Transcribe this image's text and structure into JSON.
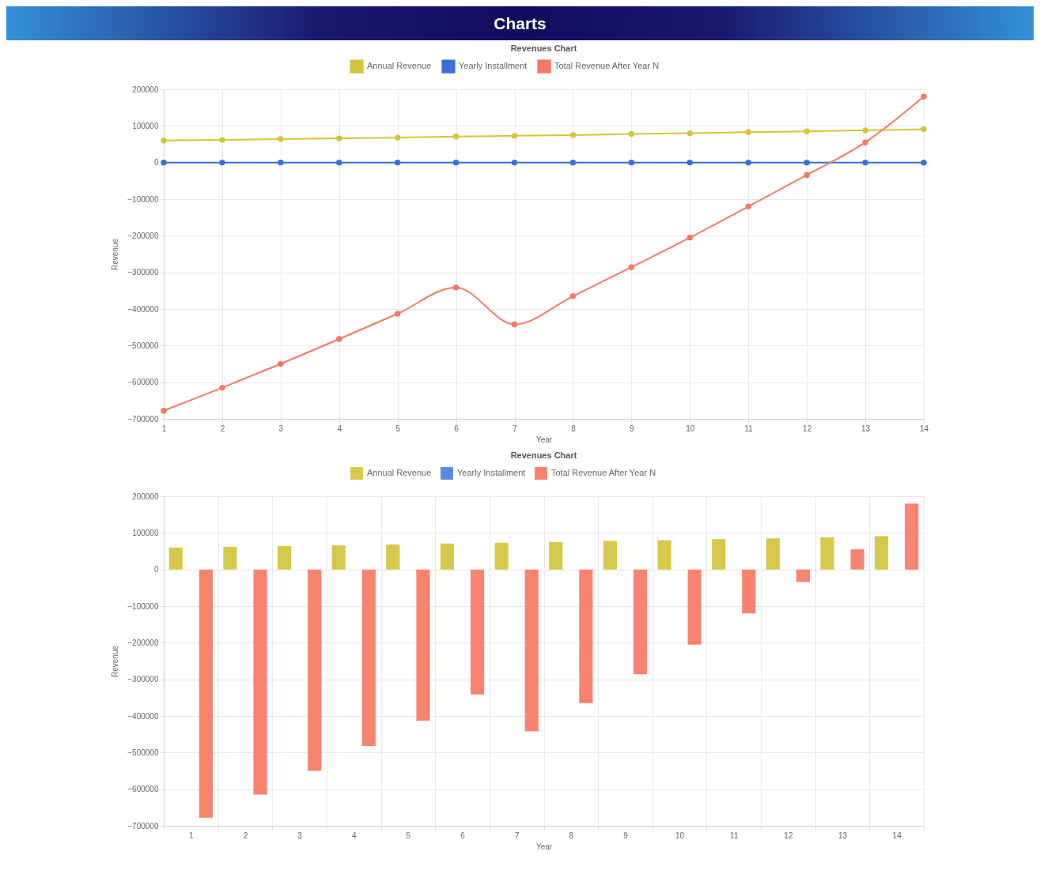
{
  "chart_data": [
    {
      "type": "line",
      "title": "Revenues Chart",
      "annotations": [
        "Charts"
      ],
      "xlabel": "Year",
      "ylabel": "Revenue",
      "x": [
        1,
        2,
        3,
        4,
        5,
        6,
        7,
        8,
        9,
        10,
        11,
        12,
        13,
        14
      ],
      "xlim": [
        1,
        14
      ],
      "xticks": [
        1,
        2,
        3,
        4,
        5,
        6,
        7,
        8,
        9,
        10,
        11,
        12,
        13,
        14
      ],
      "ylim": [
        -700000,
        200000
      ],
      "yticks": [
        -700000,
        -600000,
        -500000,
        -400000,
        -300000,
        -200000,
        -100000,
        0,
        100000,
        200000
      ],
      "grid": true,
      "legend": "top",
      "marker": "circle",
      "series": [
        {
          "name": "Annual Revenue",
          "color": "#d4c43c",
          "values": [
            60000,
            62000,
            64000,
            66000,
            68000,
            71000,
            73000,
            75000,
            78000,
            80000,
            83000,
            85000,
            88000,
            91000
          ]
        },
        {
          "name": "Yearly Installment",
          "color": "#3b6fd8",
          "values": [
            0,
            0,
            0,
            0,
            0,
            0,
            0,
            0,
            0,
            0,
            0,
            0,
            0,
            0
          ]
        },
        {
          "name": "Total Revenue After Year N",
          "color": "#f27a66",
          "values": [
            -678000,
            -615000,
            -550000,
            -482000,
            -413000,
            -341000,
            -442000,
            -365000,
            -286000,
            -205000,
            -120000,
            -34000,
            55000,
            180000
          ]
        }
      ]
    },
    {
      "type": "bar",
      "title": "Revenues Chart",
      "xlabel": "Year",
      "ylabel": "Revenue",
      "categories": [
        "1",
        "2",
        "3",
        "4",
        "5",
        "6",
        "7",
        "8",
        "9",
        "10",
        "11",
        "12",
        "13",
        "14"
      ],
      "ylim": [
        -700000,
        200000
      ],
      "yticks": [
        -700000,
        -600000,
        -500000,
        -400000,
        -300000,
        -200000,
        -100000,
        0,
        100000,
        200000
      ],
      "grid": true,
      "legend": "top",
      "series": [
        {
          "name": "Annual Revenue",
          "color": "#d6c84a",
          "values": [
            60000,
            62000,
            64000,
            66000,
            68000,
            71000,
            73000,
            75000,
            78000,
            80000,
            83000,
            85000,
            88000,
            91000
          ]
        },
        {
          "name": "Yearly Installment",
          "color": "#5a87e0",
          "values": [
            0,
            0,
            0,
            0,
            0,
            0,
            0,
            0,
            0,
            0,
            0,
            0,
            0,
            0
          ]
        },
        {
          "name": "Total Revenue After Year N",
          "color": "#f8836f",
          "values": [
            -678000,
            -615000,
            -550000,
            -482000,
            -413000,
            -341000,
            -442000,
            -365000,
            -286000,
            -205000,
            -120000,
            -34000,
            55000,
            180000
          ]
        }
      ]
    }
  ]
}
